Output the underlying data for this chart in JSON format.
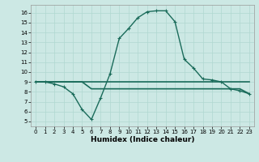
{
  "title": "",
  "xlabel": "Humidex (Indice chaleur)",
  "background_color": "#cce8e4",
  "grid_color": "#b0d8d0",
  "line_color": "#1a6b5a",
  "xlim": [
    -0.5,
    23.5
  ],
  "ylim": [
    4.5,
    16.8
  ],
  "xticks": [
    0,
    1,
    2,
    3,
    4,
    5,
    6,
    7,
    8,
    9,
    10,
    11,
    12,
    13,
    14,
    15,
    16,
    17,
    18,
    19,
    20,
    21,
    22,
    23
  ],
  "yticks": [
    5,
    6,
    7,
    8,
    9,
    10,
    11,
    12,
    13,
    14,
    15,
    16
  ],
  "line1_x": [
    0,
    1,
    2,
    3,
    4,
    5,
    6,
    7,
    8,
    9,
    10,
    11,
    12,
    13,
    14,
    15,
    16,
    17,
    18,
    19,
    20,
    21,
    22,
    23
  ],
  "line1_y": [
    9.0,
    9.0,
    8.8,
    8.5,
    7.8,
    6.2,
    5.2,
    7.4,
    9.8,
    13.4,
    14.4,
    15.5,
    16.1,
    16.2,
    16.2,
    15.1,
    11.3,
    10.4,
    9.3,
    9.2,
    9.0,
    8.3,
    8.1,
    7.8
  ],
  "line2_x": [
    0,
    1,
    2,
    3,
    4,
    5,
    6,
    7,
    8,
    9,
    10,
    11,
    12,
    13,
    14,
    15,
    16,
    17,
    18,
    19,
    20,
    21,
    22,
    23
  ],
  "line2_y": [
    9.0,
    9.0,
    9.0,
    9.0,
    9.0,
    9.0,
    9.0,
    9.0,
    9.0,
    9.0,
    9.0,
    9.0,
    9.0,
    9.0,
    9.0,
    9.0,
    9.0,
    9.0,
    9.0,
    9.0,
    9.0,
    9.0,
    9.0,
    9.0
  ],
  "line3_x": [
    0,
    1,
    2,
    3,
    4,
    5,
    6,
    7,
    8,
    9,
    10,
    11,
    12,
    13,
    14,
    15,
    16,
    17,
    18,
    19,
    20,
    21,
    22,
    23
  ],
  "line3_y": [
    9.0,
    9.0,
    9.0,
    9.0,
    9.0,
    9.0,
    8.3,
    8.3,
    8.3,
    8.3,
    8.3,
    8.3,
    8.3,
    8.3,
    8.3,
    8.3,
    8.3,
    8.3,
    8.3,
    8.3,
    8.3,
    8.3,
    8.3,
    7.8
  ],
  "xlabel_fontsize": 6.5,
  "tick_fontsize": 5.0,
  "linewidth1": 1.0,
  "linewidth2": 1.2,
  "marker_size": 3.5
}
